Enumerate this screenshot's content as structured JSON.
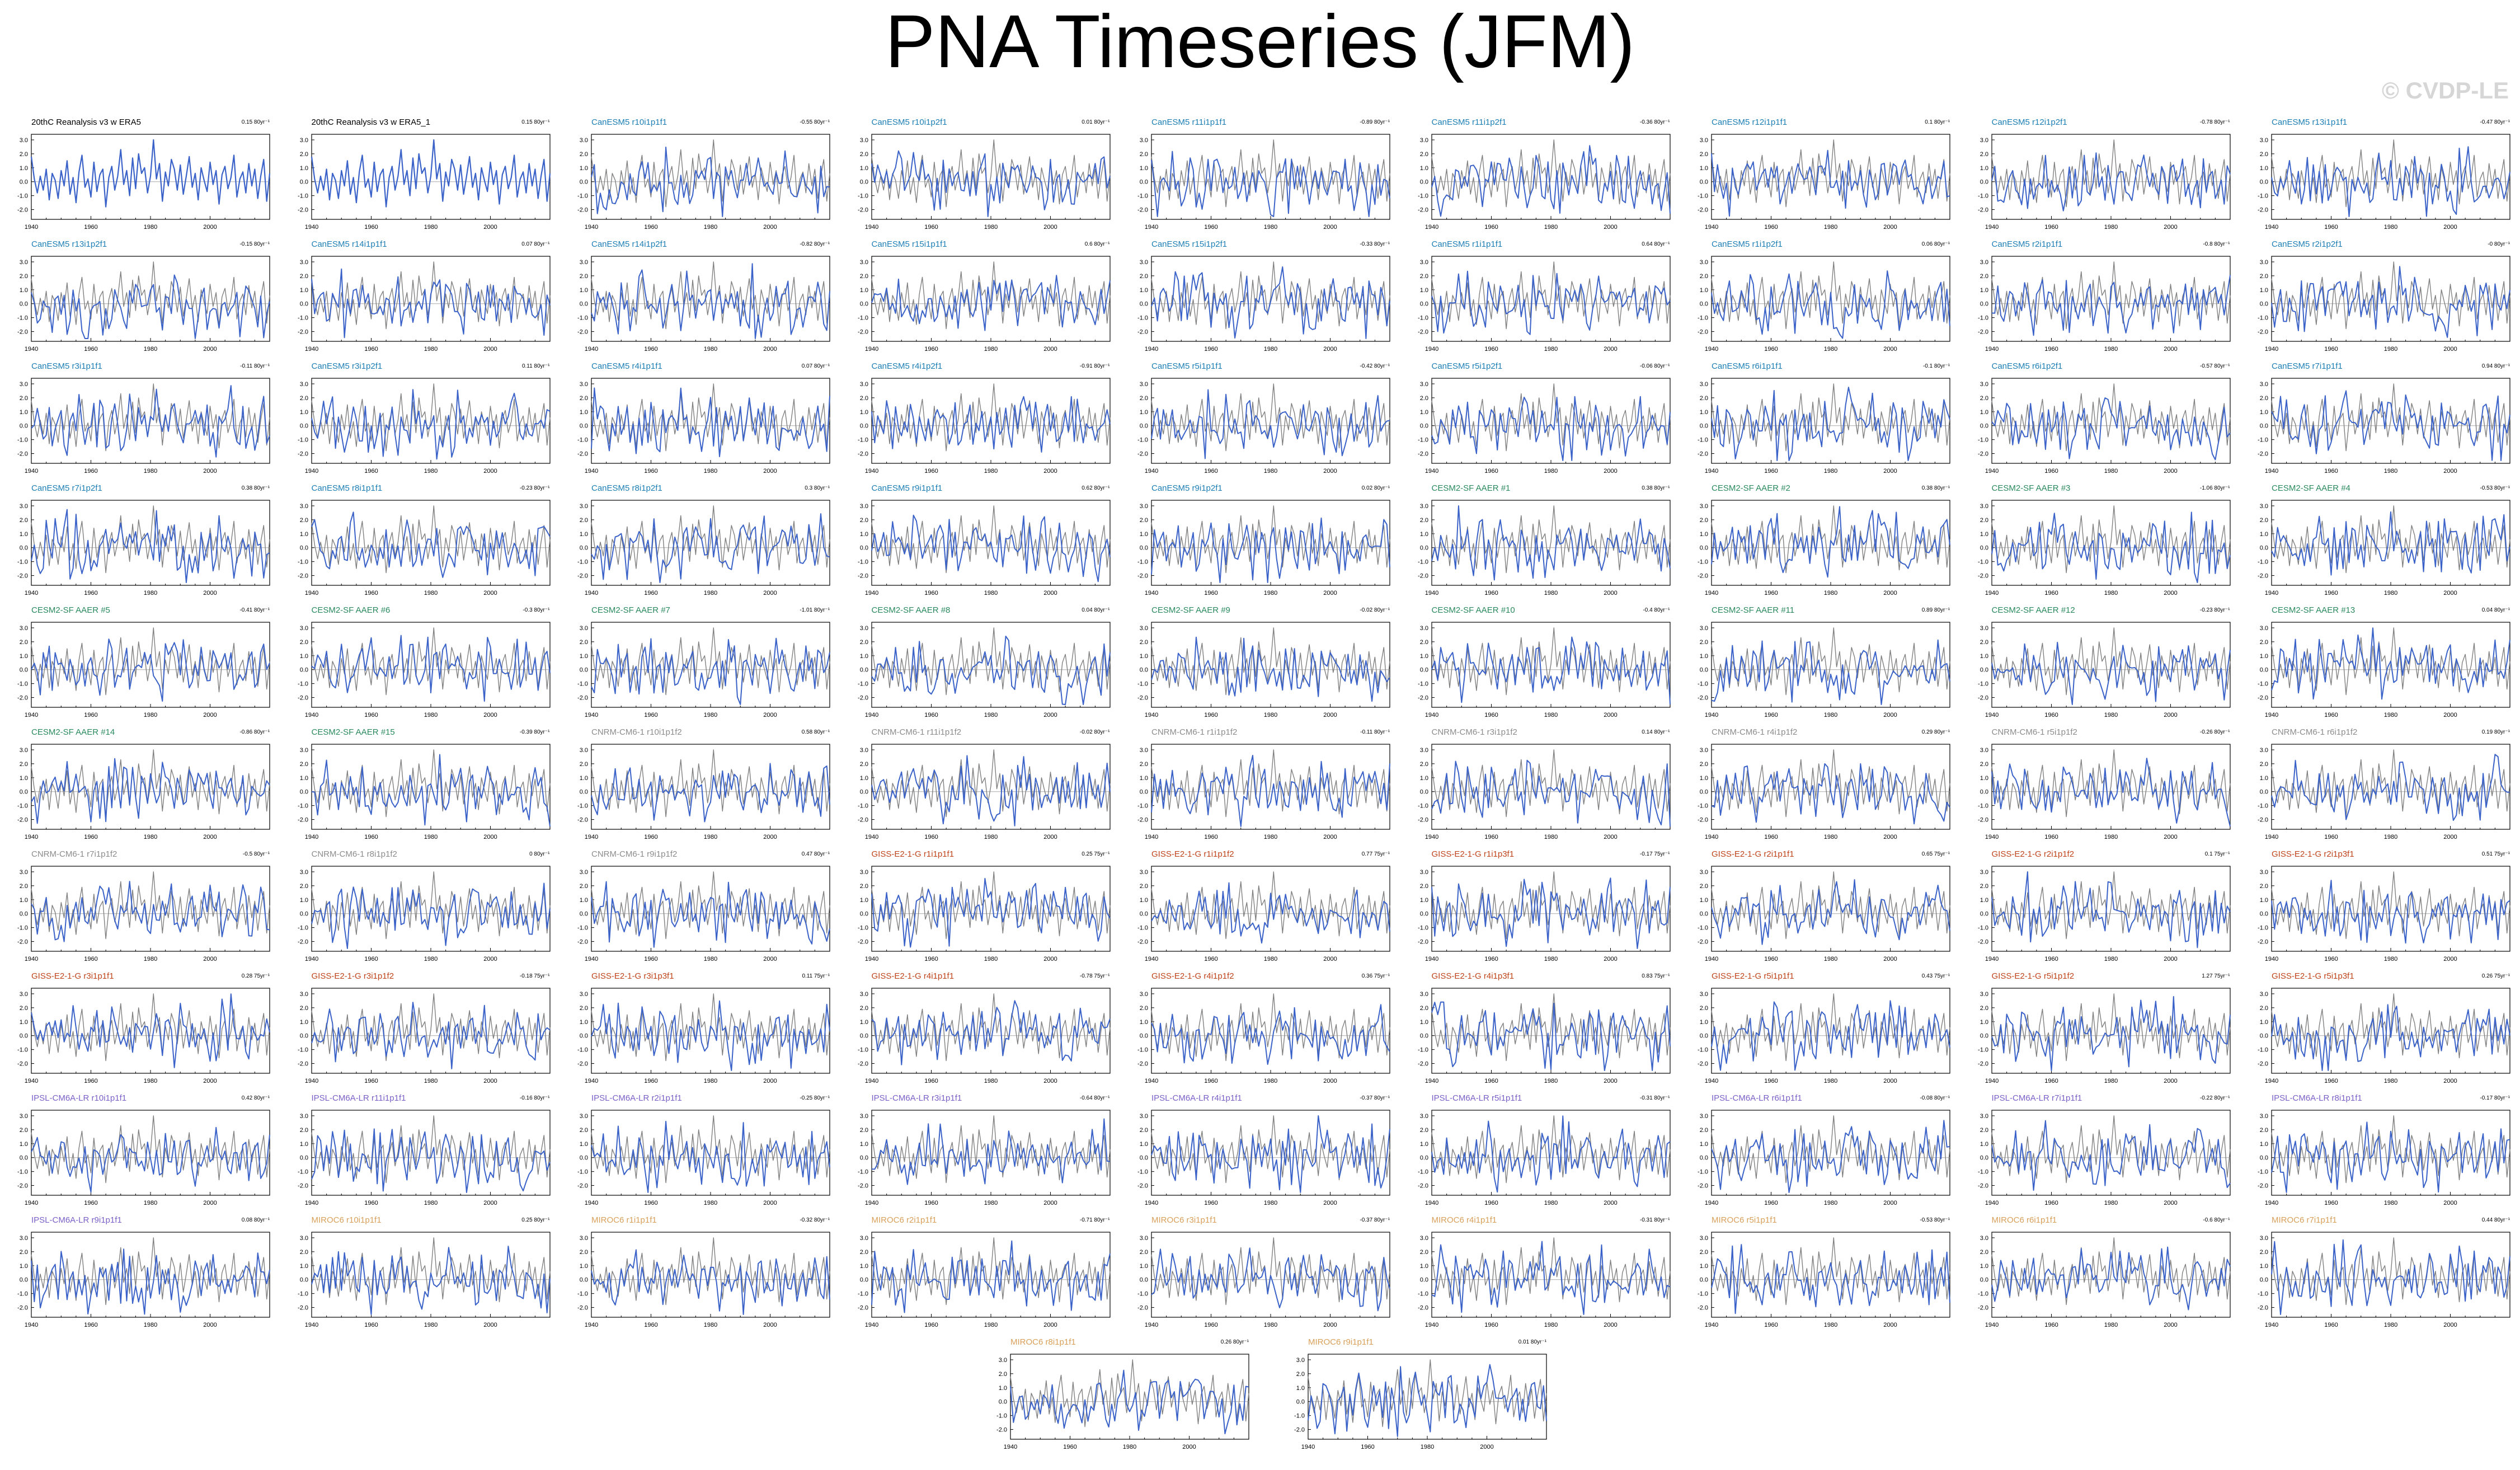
{
  "title": "PNA Timeseries (JFM)",
  "watermark": "© CVDP-LE",
  "colors": {
    "model": "#3a62c8",
    "obs": "#808080",
    "zero": "#aaaaaa",
    "label_obs": "#000000",
    "label_canesm5": "#1d7fb5",
    "label_cesm2": "#2a8a5e",
    "label_cnrm": "#8c8c8c",
    "label_giss": "#c0441b",
    "label_ipsl": "#7a5fc8",
    "label_miroc6": "#d9a05a"
  },
  "chart_data": {
    "type": "line",
    "xlim": [
      1940,
      2020
    ],
    "x_ticks": [
      1940,
      1960,
      1980,
      2000
    ],
    "y_ticks": [
      -2.0,
      -1.0,
      0.0,
      1.0,
      2.0,
      3.0
    ],
    "start_year": 1940,
    "panels": [
      {
        "label": "20thC Reanalysis v3 w ERA5",
        "trend": "0.15 80yr⁻¹",
        "group": "label_obs",
        "obs_only": true
      },
      {
        "label": "20thC Reanalysis v3 w ERA5_1",
        "trend": "0.15 80yr⁻¹",
        "group": "label_obs",
        "obs_only": true
      },
      {
        "label": "CanESM5 r10i1p1f1",
        "trend": "-0.55 80yr⁻¹",
        "group": "label_canesm5"
      },
      {
        "label": "CanESM5 r10i1p2f1",
        "trend": "0.01 80yr⁻¹",
        "group": "label_canesm5"
      },
      {
        "label": "CanESM5 r11i1p1f1",
        "trend": "-0.89 80yr⁻¹",
        "group": "label_canesm5"
      },
      {
        "label": "CanESM5 r11i1p2f1",
        "trend": "-0.36 80yr⁻¹",
        "group": "label_canesm5"
      },
      {
        "label": "CanESM5 r12i1p1f1",
        "trend": "0.1 80yr⁻¹",
        "group": "label_canesm5"
      },
      {
        "label": "CanESM5 r12i1p2f1",
        "trend": "-0.78 80yr⁻¹",
        "group": "label_canesm5"
      },
      {
        "label": "CanESM5 r13i1p1f1",
        "trend": "-0.47 80yr⁻¹",
        "group": "label_canesm5"
      },
      {
        "label": "CanESM5 r13i1p2f1",
        "trend": "-0.15 80yr⁻¹",
        "group": "label_canesm5"
      },
      {
        "label": "CanESM5 r14i1p1f1",
        "trend": "0.07 80yr⁻¹",
        "group": "label_canesm5"
      },
      {
        "label": "CanESM5 r14i1p2f1",
        "trend": "-0.82 80yr⁻¹",
        "group": "label_canesm5"
      },
      {
        "label": "CanESM5 r15i1p1f1",
        "trend": "0.6 80yr⁻¹",
        "group": "label_canesm5"
      },
      {
        "label": "CanESM5 r15i1p2f1",
        "trend": "-0.33 80yr⁻¹",
        "group": "label_canesm5"
      },
      {
        "label": "CanESM5 r1i1p1f1",
        "trend": "0.64 80yr⁻¹",
        "group": "label_canesm5"
      },
      {
        "label": "CanESM5 r1i1p2f1",
        "trend": "0.06 80yr⁻¹",
        "group": "label_canesm5"
      },
      {
        "label": "CanESM5 r2i1p1f1",
        "trend": "-0.8 80yr⁻¹",
        "group": "label_canesm5"
      },
      {
        "label": "CanESM5 r2i1p2f1",
        "trend": "-0 80yr⁻¹",
        "group": "label_canesm5"
      },
      {
        "label": "CanESM5 r3i1p1f1",
        "trend": "-0.11 80yr⁻¹",
        "group": "label_canesm5"
      },
      {
        "label": "CanESM5 r3i1p2f1",
        "trend": "0.11 80yr⁻¹",
        "group": "label_canesm5"
      },
      {
        "label": "CanESM5 r4i1p1f1",
        "trend": "0.07 80yr⁻¹",
        "group": "label_canesm5"
      },
      {
        "label": "CanESM5 r4i1p2f1",
        "trend": "-0.91 80yr⁻¹",
        "group": "label_canesm5"
      },
      {
        "label": "CanESM5 r5i1p1f1",
        "trend": "-0.42 80yr⁻¹",
        "group": "label_canesm5"
      },
      {
        "label": "CanESM5 r5i1p2f1",
        "trend": "-0.06 80yr⁻¹",
        "group": "label_canesm5"
      },
      {
        "label": "CanESM5 r6i1p1f1",
        "trend": "-0.1 80yr⁻¹",
        "group": "label_canesm5"
      },
      {
        "label": "CanESM5 r6i1p2f1",
        "trend": "-0.57 80yr⁻¹",
        "group": "label_canesm5"
      },
      {
        "label": "CanESM5 r7i1p1f1",
        "trend": "0.94 80yr⁻¹",
        "group": "label_canesm5"
      },
      {
        "label": "CanESM5 r7i1p2f1",
        "trend": "0.38 80yr⁻¹",
        "group": "label_canesm5"
      },
      {
        "label": "CanESM5 r8i1p1f1",
        "trend": "-0.23 80yr⁻¹",
        "group": "label_canesm5"
      },
      {
        "label": "CanESM5 r8i1p2f1",
        "trend": "0.3 80yr⁻¹",
        "group": "label_canesm5"
      },
      {
        "label": "CanESM5 r9i1p1f1",
        "trend": "0.62 80yr⁻¹",
        "group": "label_canesm5"
      },
      {
        "label": "CanESM5 r9i1p2f1",
        "trend": "0.02 80yr⁻¹",
        "group": "label_canesm5"
      },
      {
        "label": "CESM2-SF AAER #1",
        "trend": "0.38 80yr⁻¹",
        "group": "label_cesm2"
      },
      {
        "label": "CESM2-SF AAER #2",
        "trend": "0.38 80yr⁻¹",
        "group": "label_cesm2"
      },
      {
        "label": "CESM2-SF AAER #3",
        "trend": "-1.06 80yr⁻¹",
        "group": "label_cesm2"
      },
      {
        "label": "CESM2-SF AAER #4",
        "trend": "-0.53 80yr⁻¹",
        "group": "label_cesm2"
      },
      {
        "label": "CESM2-SF AAER #5",
        "trend": "-0.41 80yr⁻¹",
        "group": "label_cesm2"
      },
      {
        "label": "CESM2-SF AAER #6",
        "trend": "-0.3 80yr⁻¹",
        "group": "label_cesm2"
      },
      {
        "label": "CESM2-SF AAER #7",
        "trend": "-1.01 80yr⁻¹",
        "group": "label_cesm2"
      },
      {
        "label": "CESM2-SF AAER #8",
        "trend": "0.04 80yr⁻¹",
        "group": "label_cesm2"
      },
      {
        "label": "CESM2-SF AAER #9",
        "trend": "-0.02 80yr⁻¹",
        "group": "label_cesm2"
      },
      {
        "label": "CESM2-SF AAER #10",
        "trend": "-0.4 80yr⁻¹",
        "group": "label_cesm2"
      },
      {
        "label": "CESM2-SF AAER #11",
        "trend": "0.89 80yr⁻¹",
        "group": "label_cesm2"
      },
      {
        "label": "CESM2-SF AAER #12",
        "trend": "-0.23 80yr⁻¹",
        "group": "label_cesm2"
      },
      {
        "label": "CESM2-SF AAER #13",
        "trend": "0.04 80yr⁻¹",
        "group": "label_cesm2"
      },
      {
        "label": "CESM2-SF AAER #14",
        "trend": "-0.86 80yr⁻¹",
        "group": "label_cesm2"
      },
      {
        "label": "CESM2-SF AAER #15",
        "trend": "-0.39 80yr⁻¹",
        "group": "label_cesm2"
      },
      {
        "label": "CNRM-CM6-1 r10i1p1f2",
        "trend": "0.58 80yr⁻¹",
        "group": "label_cnrm"
      },
      {
        "label": "CNRM-CM6-1 r11i1p1f2",
        "trend": "-0.02 80yr⁻¹",
        "group": "label_cnrm"
      },
      {
        "label": "CNRM-CM6-1 r1i1p1f2",
        "trend": "-0.11 80yr⁻¹",
        "group": "label_cnrm"
      },
      {
        "label": "CNRM-CM6-1 r3i1p1f2",
        "trend": "0.14 80yr⁻¹",
        "group": "label_cnrm"
      },
      {
        "label": "CNRM-CM6-1 r4i1p1f2",
        "trend": "0.29 80yr⁻¹",
        "group": "label_cnrm"
      },
      {
        "label": "CNRM-CM6-1 r5i1p1f2",
        "trend": "-0.26 80yr⁻¹",
        "group": "label_cnrm"
      },
      {
        "label": "CNRM-CM6-1 r6i1p1f2",
        "trend": "0.19 80yr⁻¹",
        "group": "label_cnrm"
      },
      {
        "label": "CNRM-CM6-1 r7i1p1f2",
        "trend": "-0.5 80yr⁻¹",
        "group": "label_cnrm"
      },
      {
        "label": "CNRM-CM6-1 r8i1p1f2",
        "trend": "0 80yr⁻¹",
        "group": "label_cnrm"
      },
      {
        "label": "CNRM-CM6-1 r9i1p1f2",
        "trend": "0.47 80yr⁻¹",
        "group": "label_cnrm"
      },
      {
        "label": "GISS-E2-1-G r1i1p1f1",
        "trend": "0.25 75yr⁻¹",
        "group": "label_giss"
      },
      {
        "label": "GISS-E2-1-G r1i1p1f2",
        "trend": "0.77 75yr⁻¹",
        "group": "label_giss"
      },
      {
        "label": "GISS-E2-1-G r1i1p3f1",
        "trend": "-0.17 75yr⁻¹",
        "group": "label_giss"
      },
      {
        "label": "GISS-E2-1-G r2i1p1f1",
        "trend": "0.65 75yr⁻¹",
        "group": "label_giss"
      },
      {
        "label": "GISS-E2-1-G r2i1p1f2",
        "trend": "0.1 75yr⁻¹",
        "group": "label_giss"
      },
      {
        "label": "GISS-E2-1-G r2i1p3f1",
        "trend": "0.51 75yr⁻¹",
        "group": "label_giss"
      },
      {
        "label": "GISS-E2-1-G r3i1p1f1",
        "trend": "0.28 75yr⁻¹",
        "group": "label_giss"
      },
      {
        "label": "GISS-E2-1-G r3i1p1f2",
        "trend": "-0.18 75yr⁻¹",
        "group": "label_giss"
      },
      {
        "label": "GISS-E2-1-G r3i1p3f1",
        "trend": "0.11 75yr⁻¹",
        "group": "label_giss"
      },
      {
        "label": "GISS-E2-1-G r4i1p1f1",
        "trend": "-0.78 75yr⁻¹",
        "group": "label_giss"
      },
      {
        "label": "GISS-E2-1-G r4i1p1f2",
        "trend": "0.36 75yr⁻¹",
        "group": "label_giss"
      },
      {
        "label": "GISS-E2-1-G r4i1p3f1",
        "trend": "0.83 75yr⁻¹",
        "group": "label_giss"
      },
      {
        "label": "GISS-E2-1-G r5i1p1f1",
        "trend": "0.43 75yr⁻¹",
        "group": "label_giss"
      },
      {
        "label": "GISS-E2-1-G r5i1p1f2",
        "trend": "1.27 75yr⁻¹",
        "group": "label_giss"
      },
      {
        "label": "GISS-E2-1-G r5i1p3f1",
        "trend": "0.26 75yr⁻¹",
        "group": "label_giss"
      },
      {
        "label": "IPSL-CM6A-LR r10i1p1f1",
        "trend": "0.42 80yr⁻¹",
        "group": "label_ipsl"
      },
      {
        "label": "IPSL-CM6A-LR r11i1p1f1",
        "trend": "-0.16 80yr⁻¹",
        "group": "label_ipsl"
      },
      {
        "label": "IPSL-CM6A-LR r2i1p1f1",
        "trend": "-0.25 80yr⁻¹",
        "group": "label_ipsl"
      },
      {
        "label": "IPSL-CM6A-LR r3i1p1f1",
        "trend": "-0.64 80yr⁻¹",
        "group": "label_ipsl"
      },
      {
        "label": "IPSL-CM6A-LR r4i1p1f1",
        "trend": "-0.37 80yr⁻¹",
        "group": "label_ipsl"
      },
      {
        "label": "IPSL-CM6A-LR r5i1p1f1",
        "trend": "-0.31 80yr⁻¹",
        "group": "label_ipsl"
      },
      {
        "label": "IPSL-CM6A-LR r6i1p1f1",
        "trend": "-0.08 80yr⁻¹",
        "group": "label_ipsl"
      },
      {
        "label": "IPSL-CM6A-LR r7i1p1f1",
        "trend": "-0.22 80yr⁻¹",
        "group": "label_ipsl"
      },
      {
        "label": "IPSL-CM6A-LR r8i1p1f1",
        "trend": "-0.17 80yr⁻¹",
        "group": "label_ipsl"
      },
      {
        "label": "IPSL-CM6A-LR r9i1p1f1",
        "trend": "0.08 80yr⁻¹",
        "group": "label_ipsl"
      },
      {
        "label": "MIROC6 r10i1p1f1",
        "trend": "0.25 80yr⁻¹",
        "group": "label_miroc6"
      },
      {
        "label": "MIROC6 r1i1p1f1",
        "trend": "-0.32 80yr⁻¹",
        "group": "label_miroc6"
      },
      {
        "label": "MIROC6 r2i1p1f1",
        "trend": "-0.71 80yr⁻¹",
        "group": "label_miroc6"
      },
      {
        "label": "MIROC6 r3i1p1f1",
        "trend": "-0.37 80yr⁻¹",
        "group": "label_miroc6"
      },
      {
        "label": "MIROC6 r4i1p1f1",
        "trend": "-0.31 80yr⁻¹",
        "group": "label_miroc6"
      },
      {
        "label": "MIROC6 r5i1p1f1",
        "trend": "-0.53 80yr⁻¹",
        "group": "label_miroc6"
      },
      {
        "label": "MIROC6 r6i1p1f1",
        "trend": "-0.6 80yr⁻¹",
        "group": "label_miroc6"
      },
      {
        "label": "MIROC6 r7i1p1f1",
        "trend": "0.44 80yr⁻¹",
        "group": "label_miroc6"
      },
      {
        "label": "MIROC6 r8i1p1f1",
        "trend": "0.26 80yr⁻¹",
        "group": "label_miroc6"
      },
      {
        "label": "MIROC6 r9i1p1f1",
        "trend": "0.01 80yr⁻¹",
        "group": "label_miroc6"
      }
    ],
    "obs_series": [
      1.8,
      0.2,
      -0.8,
      0.4,
      -0.6,
      0.9,
      -1.3,
      0.6,
      0.1,
      -1.2,
      0.8,
      -0.3,
      1.5,
      -0.9,
      0.3,
      -1.5,
      0.7,
      1.9,
      -0.4,
      0.2,
      -1.1,
      1.4,
      -0.7,
      0.5,
      0.9,
      -1.8,
      0.3,
      1.1,
      -0.6,
      0.4,
      2.3,
      -0.2,
      0.8,
      -1.0,
      1.7,
      -0.5,
      2.0,
      0.6,
      1.0,
      -0.8,
      0.4,
      3.0,
      0.2,
      1.3,
      -1.4,
      0.7,
      -0.3,
      1.6,
      0.9,
      -0.6,
      1.2,
      -0.9,
      0.4,
      1.8,
      -0.4,
      0.6,
      -1.3,
      1.0,
      0.1,
      -0.7,
      1.4,
      -0.2,
      0.8,
      -1.6,
      0.5,
      1.1,
      -0.5,
      0.3,
      1.9,
      -1.1,
      0.2,
      0.7,
      -0.8,
      1.3,
      -0.3,
      0.9,
      -1.2,
      0.4,
      1.6,
      -1.4,
      0.6
    ]
  }
}
